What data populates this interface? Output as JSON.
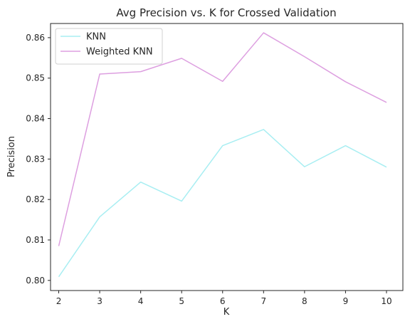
{
  "chart_data": {
    "type": "line",
    "title": "Avg Precision vs. K for Crossed Validation",
    "xlabel": "K",
    "ylabel": "Precision",
    "x": [
      2,
      3,
      4,
      5,
      6,
      7,
      8,
      9,
      10
    ],
    "xlim": [
      1.8,
      10.4
    ],
    "ylim": [
      0.7975,
      0.8635
    ],
    "xticks": [
      2,
      3,
      4,
      5,
      6,
      7,
      8,
      9,
      10
    ],
    "yticks": [
      0.8,
      0.81,
      0.82,
      0.83,
      0.84,
      0.85,
      0.86
    ],
    "ytick_labels": [
      "0.80",
      "0.81",
      "0.82",
      "0.83",
      "0.84",
      "0.85",
      "0.86"
    ],
    "grid": false,
    "legend_position": "top-left",
    "series": [
      {
        "name": "KNN",
        "color": "#a8eef2",
        "values": [
          0.8009,
          0.8157,
          0.8243,
          0.8196,
          0.8333,
          0.8373,
          0.8281,
          0.8333,
          0.828
        ]
      },
      {
        "name": "Weighted KNN",
        "color": "#dd9fe0",
        "values": [
          0.8085,
          0.851,
          0.8516,
          0.8549,
          0.8492,
          0.8612,
          0.8553,
          0.8491,
          0.844
        ]
      }
    ]
  }
}
